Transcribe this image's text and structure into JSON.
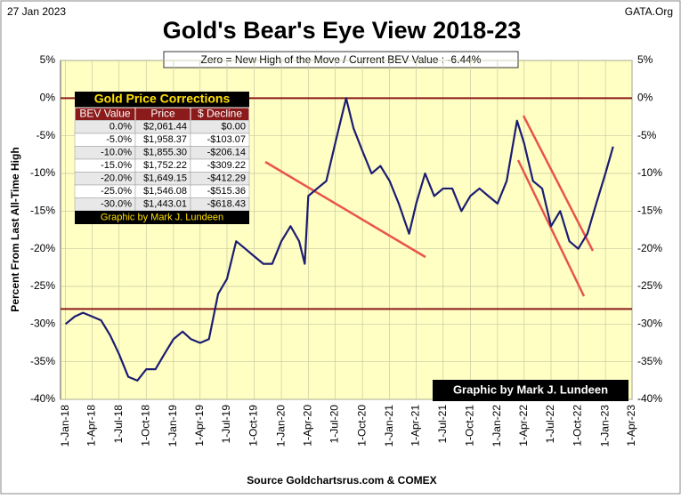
{
  "chart_data": {
    "type": "line",
    "title": "Gold's Bear's Eye View 2018-23",
    "date_label": "27 Jan 2023",
    "source_site": "GATA.Org",
    "subtitle": "Zero = New High of the Move / Current  BEV Value : -6.44%",
    "y_label": "Percent  From Last  All-Time  High",
    "credit": "Graphic by Mark J. Lundeen",
    "source": "Source Goldchartsrus.com & COMEX",
    "x": [
      "2018-01-01",
      "2018-02-01",
      "2018-03-01",
      "2018-04-01",
      "2018-05-01",
      "2018-06-01",
      "2018-07-01",
      "2018-08-01",
      "2018-09-01",
      "2018-10-01",
      "2018-11-01",
      "2018-12-01",
      "2019-01-01",
      "2019-02-01",
      "2019-03-01",
      "2019-04-01",
      "2019-05-01",
      "2019-06-01",
      "2019-07-01",
      "2019-08-01",
      "2019-09-01",
      "2019-10-01",
      "2019-11-01",
      "2019-12-01",
      "2020-01-01",
      "2020-02-01",
      "2020-03-01",
      "2020-03-20",
      "2020-04-01",
      "2020-05-01",
      "2020-06-01",
      "2020-07-01",
      "2020-08-07",
      "2020-09-01",
      "2020-10-01",
      "2020-11-01",
      "2020-12-01",
      "2021-01-01",
      "2021-02-01",
      "2021-03-08",
      "2021-04-01",
      "2021-05-01",
      "2021-06-01",
      "2021-07-01",
      "2021-08-01",
      "2021-09-01",
      "2021-10-01",
      "2021-11-01",
      "2021-12-01",
      "2022-01-01",
      "2022-02-01",
      "2022-03-08",
      "2022-04-01",
      "2022-05-01",
      "2022-06-01",
      "2022-07-01",
      "2022-08-01",
      "2022-09-01",
      "2022-10-01",
      "2022-11-01",
      "2022-12-01",
      "2023-01-01",
      "2023-01-27"
    ],
    "series": [
      {
        "name": "BEV",
        "color": "#1c1c72",
        "values": [
          -30,
          -29,
          -28.5,
          -29,
          -29.5,
          -31.5,
          -34,
          -37,
          -37.5,
          -36,
          -36,
          -34,
          -32,
          -31,
          -32,
          -32.5,
          -32,
          -26,
          -24,
          -19,
          -20,
          -21,
          -22,
          -22,
          -19,
          -17,
          -19,
          -22,
          -13,
          -12,
          -11,
          -6,
          0,
          -4,
          -7,
          -10,
          -9,
          -11,
          -14,
          -18,
          -14,
          -10,
          -13,
          -12,
          -12,
          -15,
          -13,
          -12,
          -13,
          -14,
          -11,
          -3,
          -6,
          -11,
          -12,
          -17,
          -15,
          -19,
          -20,
          -18,
          -14,
          -10,
          -6.44
        ]
      }
    ],
    "ylim": [
      -40,
      5
    ],
    "yticks": [
      {
        "value": 5,
        "label": "5%"
      },
      {
        "value": 0,
        "label": "0%"
      },
      {
        "value": -5,
        "label": "-5%"
      },
      {
        "value": -10,
        "label": "-10%"
      },
      {
        "value": -15,
        "label": "-15%"
      },
      {
        "value": -20,
        "label": "-20%"
      },
      {
        "value": -25,
        "label": "-25%"
      },
      {
        "value": -30,
        "label": "-30%"
      },
      {
        "value": -35,
        "label": "-35%"
      },
      {
        "value": -40,
        "label": "-40%"
      }
    ],
    "xlim": [
      "2017-12-15",
      "2023-04-01"
    ],
    "xticks": [
      {
        "value": "2018-01-01",
        "label": "1-Jan-18"
      },
      {
        "value": "2018-04-01",
        "label": "1-Apr-18"
      },
      {
        "value": "2018-07-01",
        "label": "1-Jul-18"
      },
      {
        "value": "2018-10-01",
        "label": "1-Oct-18"
      },
      {
        "value": "2019-01-01",
        "label": "1-Jan-19"
      },
      {
        "value": "2019-04-01",
        "label": "1-Apr-19"
      },
      {
        "value": "2019-07-01",
        "label": "1-Jul-19"
      },
      {
        "value": "2019-10-01",
        "label": "1-Oct-19"
      },
      {
        "value": "2020-01-01",
        "label": "1-Jan-20"
      },
      {
        "value": "2020-04-01",
        "label": "1-Apr-20"
      },
      {
        "value": "2020-07-01",
        "label": "1-Jul-20"
      },
      {
        "value": "2020-10-01",
        "label": "1-Oct-20"
      },
      {
        "value": "2021-01-01",
        "label": "1-Jan-21"
      },
      {
        "value": "2021-04-01",
        "label": "1-Apr-21"
      },
      {
        "value": "2021-07-01",
        "label": "1-Jul-21"
      },
      {
        "value": "2021-10-01",
        "label": "1-Oct-21"
      },
      {
        "value": "2022-01-01",
        "label": "1-Jan-22"
      },
      {
        "value": "2022-04-01",
        "label": "1-Apr-22"
      },
      {
        "value": "2022-07-01",
        "label": "1-Jul-22"
      },
      {
        "value": "2022-10-01",
        "label": "1-Oct-22"
      },
      {
        "value": "2023-01-01",
        "label": "1-Jan-23"
      },
      {
        "value": "2023-04-01",
        "label": "1-Apr-23"
      }
    ],
    "reference_lines": [
      0,
      -28
    ],
    "reference_color": "#8b1a1a",
    "grid": true,
    "table": {
      "title": "Gold Price Corrections",
      "columns": [
        "BEV Value",
        "Price",
        "$ Decline"
      ],
      "rows": [
        [
          "0.0%",
          "$2,061.44",
          "$0.00"
        ],
        [
          "-5.0%",
          "$1,958.37",
          "-$103.07"
        ],
        [
          "-10.0%",
          "$1,855.30",
          "-$206.14"
        ],
        [
          "-15.0%",
          "$1,752.22",
          "-$309.22"
        ],
        [
          "-20.0%",
          "$1,649.15",
          "-$412.29"
        ],
        [
          "-25.0%",
          "$1,546.08",
          "-$515.36"
        ],
        [
          "-30.0%",
          "$1,443.01",
          "-$618.43"
        ]
      ],
      "footer": "Graphic by Mark J. Lundeen"
    }
  }
}
